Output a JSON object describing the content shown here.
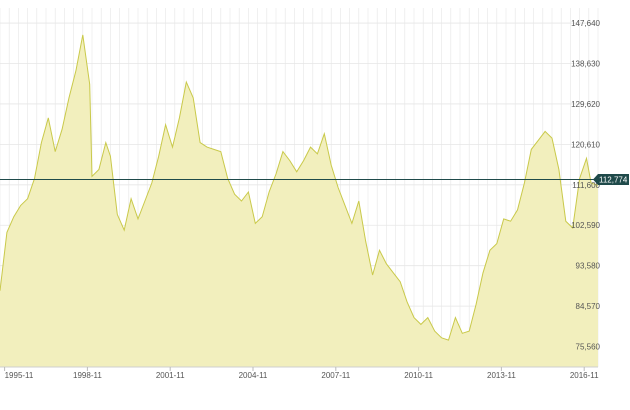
{
  "chart_data": {
    "type": "area",
    "title": "",
    "xlabel": "",
    "ylabel": "",
    "ylim": [
      71000,
      151000
    ],
    "y_ticks": [
      75560,
      84570,
      93580,
      102590,
      111600,
      120610,
      129620,
      138630,
      147640
    ],
    "y_tick_labels": [
      "75,560",
      "84,570",
      "93,580",
      "102,590",
      "111,600",
      "120,610",
      "129,620",
      "138,630",
      "147,640"
    ],
    "x_tick_labels": [
      "1995-11",
      "1998-11",
      "2001-11",
      "2004-11",
      "2007-11",
      "2010-11",
      "2013-11",
      "2016-11"
    ],
    "x_range": [
      "1995-09",
      "2017-05"
    ],
    "grid": true,
    "reference_line": {
      "value": 112774,
      "label": "112,774"
    },
    "colors": {
      "fill": "#f2efbd",
      "line": "#c9c94a",
      "reference": "#1f4a4a",
      "grid": "#e6e6e6"
    },
    "series": [
      {
        "values": [
          [
            "1995-09",
            88000
          ],
          [
            "1995-12",
            101000
          ],
          [
            "1996-03",
            104500
          ],
          [
            "1996-06",
            107000
          ],
          [
            "1996-09",
            108500
          ],
          [
            "1996-12",
            113000
          ],
          [
            "1997-03",
            121000
          ],
          [
            "1997-06",
            126500
          ],
          [
            "1997-09",
            119000
          ],
          [
            "1997-12",
            124000
          ],
          [
            "1998-03",
            131000
          ],
          [
            "1998-06",
            137000
          ],
          [
            "1998-09",
            145000
          ],
          [
            "1998-12",
            134000
          ],
          [
            "1999-01",
            113500
          ],
          [
            "1999-04",
            115000
          ],
          [
            "1999-07",
            121000
          ],
          [
            "1999-09",
            118000
          ],
          [
            "1999-12",
            105000
          ],
          [
            "2000-03",
            101500
          ],
          [
            "2000-06",
            108500
          ],
          [
            "2000-09",
            104000
          ],
          [
            "2000-12",
            108000
          ],
          [
            "2001-03",
            112000
          ],
          [
            "2001-06",
            118000
          ],
          [
            "2001-09",
            125000
          ],
          [
            "2001-12",
            120000
          ],
          [
            "2002-03",
            126500
          ],
          [
            "2002-06",
            134500
          ],
          [
            "2002-09",
            131000
          ],
          [
            "2002-12",
            121000
          ],
          [
            "2003-03",
            120000
          ],
          [
            "2003-06",
            119500
          ],
          [
            "2003-09",
            119000
          ],
          [
            "2003-12",
            113000
          ],
          [
            "2004-03",
            109500
          ],
          [
            "2004-06",
            108000
          ],
          [
            "2004-09",
            110000
          ],
          [
            "2004-12",
            103000
          ],
          [
            "2005-03",
            104500
          ],
          [
            "2005-06",
            110000
          ],
          [
            "2005-09",
            114000
          ],
          [
            "2005-12",
            119000
          ],
          [
            "2006-03",
            117000
          ],
          [
            "2006-06",
            114500
          ],
          [
            "2006-09",
            117000
          ],
          [
            "2006-12",
            120000
          ],
          [
            "2007-03",
            118500
          ],
          [
            "2007-06",
            123000
          ],
          [
            "2007-09",
            116000
          ],
          [
            "2007-12",
            111000
          ],
          [
            "2008-03",
            107000
          ],
          [
            "2008-06",
            103000
          ],
          [
            "2008-09",
            108000
          ],
          [
            "2008-12",
            99000
          ],
          [
            "2009-03",
            91500
          ],
          [
            "2009-06",
            97000
          ],
          [
            "2009-09",
            94000
          ],
          [
            "2009-12",
            92000
          ],
          [
            "2010-03",
            90000
          ],
          [
            "2010-06",
            85500
          ],
          [
            "2010-09",
            82000
          ],
          [
            "2010-12",
            80500
          ],
          [
            "2011-03",
            82000
          ],
          [
            "2011-06",
            79000
          ],
          [
            "2011-09",
            77500
          ],
          [
            "2011-12",
            77000
          ],
          [
            "2012-03",
            82000
          ],
          [
            "2012-06",
            78500
          ],
          [
            "2012-09",
            79000
          ],
          [
            "2012-12",
            85000
          ],
          [
            "2013-03",
            92000
          ],
          [
            "2013-06",
            97000
          ],
          [
            "2013-09",
            98500
          ],
          [
            "2013-12",
            104000
          ],
          [
            "2014-03",
            103500
          ],
          [
            "2014-06",
            106000
          ],
          [
            "2014-09",
            112000
          ],
          [
            "2014-12",
            119500
          ],
          [
            "2015-03",
            121500
          ],
          [
            "2015-06",
            123500
          ],
          [
            "2015-09",
            122000
          ],
          [
            "2015-12",
            115000
          ],
          [
            "2016-03",
            103500
          ],
          [
            "2016-06",
            102000
          ],
          [
            "2016-09",
            113000
          ],
          [
            "2016-12",
            117500
          ],
          [
            "2017-02",
            112000
          ],
          [
            "2017-05",
            111500
          ]
        ]
      }
    ]
  }
}
